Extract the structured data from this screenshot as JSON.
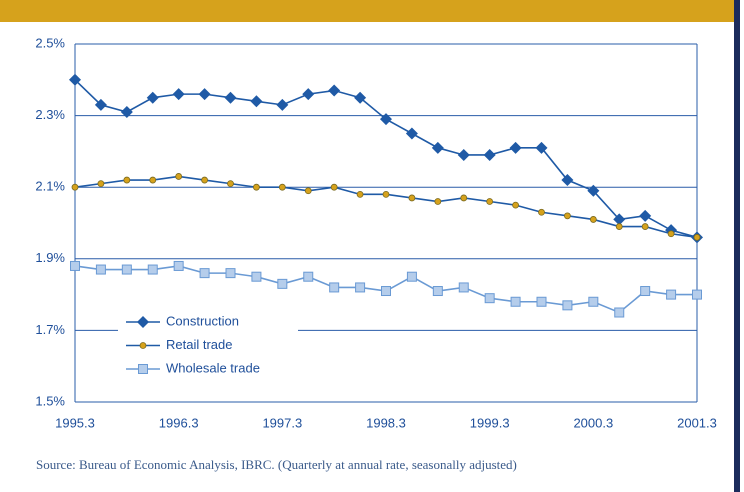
{
  "chart_data": {
    "type": "line",
    "source": "Source: Bureau of Economic Analysis, IBRC. (Quarterly at annual rate, seasonally adjusted)",
    "categories": [
      "1995.3",
      null,
      null,
      null,
      "1996.3",
      null,
      null,
      null,
      "1997.3",
      null,
      null,
      null,
      "1998.3",
      null,
      null,
      null,
      "1999.3",
      null,
      null,
      null,
      "2000.3",
      null,
      null,
      null,
      "2001.3"
    ],
    "series": [
      {
        "name": "Construction",
        "color": "#1f5aa6",
        "marker": "diamond",
        "values": [
          2.4,
          2.33,
          2.31,
          2.35,
          2.36,
          2.36,
          2.35,
          2.34,
          2.33,
          2.36,
          2.37,
          2.35,
          2.29,
          2.25,
          2.21,
          2.19,
          2.19,
          2.21,
          2.21,
          2.12,
          2.09,
          2.01,
          2.02,
          1.98,
          1.96
        ]
      },
      {
        "name": "Retail trade",
        "color": "#1f5aa6",
        "marker": "circle",
        "values": [
          2.1,
          2.11,
          2.12,
          2.12,
          2.13,
          2.12,
          2.11,
          2.1,
          2.1,
          2.09,
          2.1,
          2.08,
          2.08,
          2.07,
          2.06,
          2.07,
          2.06,
          2.05,
          2.03,
          2.02,
          2.01,
          1.99,
          1.99,
          1.97,
          1.96
        ]
      },
      {
        "name": "Wholesale trade",
        "color": "#6a9ad4",
        "marker": "square",
        "values": [
          1.88,
          1.87,
          1.87,
          1.87,
          1.88,
          1.86,
          1.86,
          1.85,
          1.83,
          1.85,
          1.82,
          1.82,
          1.81,
          1.85,
          1.81,
          1.82,
          1.79,
          1.78,
          1.78,
          1.77,
          1.78,
          1.75,
          1.81,
          1.8,
          1.8
        ]
      }
    ],
    "ylim": [
      1.5,
      2.5
    ],
    "yticks": [
      {
        "value": 1.5,
        "label": "1.5%"
      },
      {
        "value": 1.7,
        "label": "1.7%"
      },
      {
        "value": 1.9,
        "label": "1.9%"
      },
      {
        "value": 2.1,
        "label": "2.1%"
      },
      {
        "value": 2.3,
        "label": "2.3%"
      },
      {
        "value": 2.5,
        "label": "2.5%"
      }
    ],
    "grid": true
  }
}
